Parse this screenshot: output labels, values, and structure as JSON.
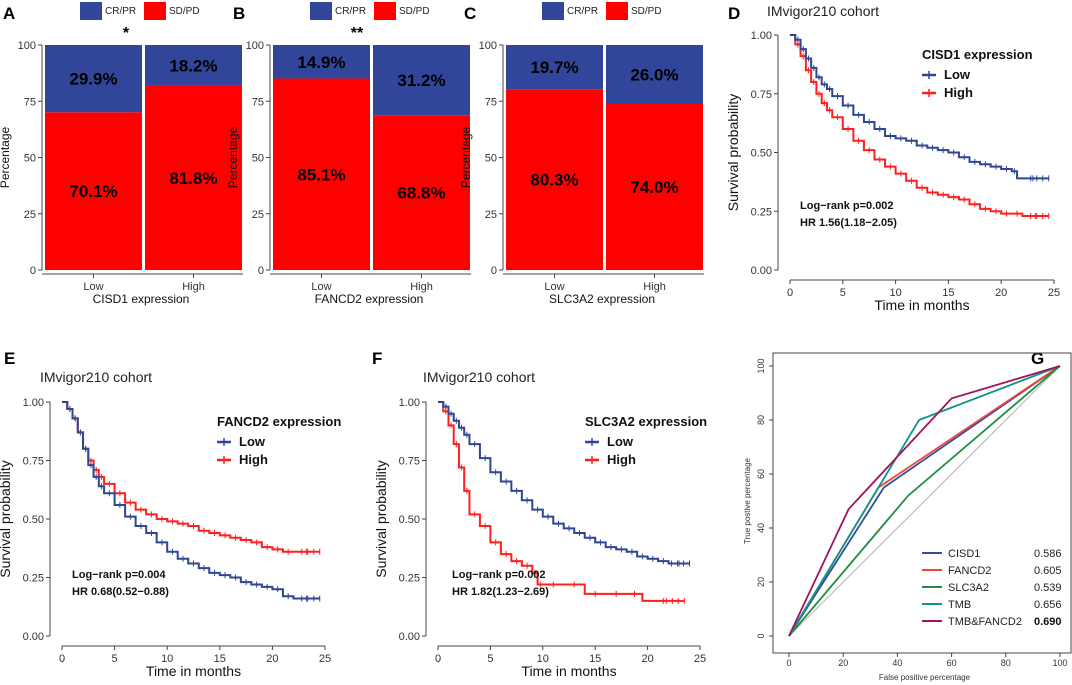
{
  "colors": {
    "cr_pr": "#31469a",
    "sd_pd": "#ff0000",
    "km_low": "#2f4694",
    "km_high": "#ff1f1f",
    "roc": [
      "#2f4f9a",
      "#ef4438",
      "#1f8f3f",
      "#10948c",
      "#a4125a"
    ],
    "diag": "#bdbdbd"
  },
  "chart_data": [
    {
      "panel": "A",
      "type": "bar",
      "stacked": true,
      "legend": [
        "CR/PR",
        "SD/PD"
      ],
      "categories": [
        "Low",
        "High"
      ],
      "series": [
        {
          "name": "CR/PR",
          "values": [
            29.9,
            18.2
          ],
          "labels": [
            "29.9%",
            "18.2%"
          ]
        },
        {
          "name": "SD/PD",
          "values": [
            70.1,
            81.8
          ],
          "labels": [
            "70.1%",
            "81.8%"
          ]
        }
      ],
      "xlabel": "CISD1 expression",
      "ylabel": "Percentage",
      "ylim": [
        0,
        100
      ],
      "yticks": [
        "0",
        "25",
        "50",
        "75",
        "100"
      ],
      "significance": "*"
    },
    {
      "panel": "B",
      "type": "bar",
      "stacked": true,
      "legend": [
        "CR/PR",
        "SD/PD"
      ],
      "categories": [
        "Low",
        "High"
      ],
      "series": [
        {
          "name": "CR/PR",
          "values": [
            14.9,
            31.2
          ],
          "labels": [
            "14.9%",
            "31.2%"
          ]
        },
        {
          "name": "SD/PD",
          "values": [
            85.1,
            68.8
          ],
          "labels": [
            "85.1%",
            "68.8%"
          ]
        }
      ],
      "xlabel": "FANCD2 expression",
      "ylabel": "Percentage",
      "ylim": [
        0,
        100
      ],
      "yticks": [
        "0",
        "25",
        "50",
        "75",
        "100"
      ],
      "significance": "**"
    },
    {
      "panel": "C",
      "type": "bar",
      "stacked": true,
      "legend": [
        "CR/PR",
        "SD/PD"
      ],
      "categories": [
        "Low",
        "High"
      ],
      "series": [
        {
          "name": "CR/PR",
          "values": [
            19.7,
            26.0
          ],
          "labels": [
            "19.7%",
            "26.0%"
          ]
        },
        {
          "name": "SD/PD",
          "values": [
            80.3,
            74.0
          ],
          "labels": [
            "80.3%",
            "74.0%"
          ]
        }
      ],
      "xlabel": "SLC3A2 expression",
      "ylabel": "Percentage",
      "ylim": [
        0,
        100
      ],
      "yticks": [
        "0",
        "25",
        "50",
        "75",
        "100"
      ],
      "significance": ""
    },
    {
      "panel": "D",
      "type": "line",
      "title": "IMvigor210 cohort",
      "legend_title": "CISD1 expression",
      "xlabel": "Time in months",
      "ylabel": "Survival probability",
      "xlim": [
        0,
        25
      ],
      "ylim": [
        0,
        1
      ],
      "xticks": [
        "0",
        "5",
        "10",
        "15",
        "20",
        "25"
      ],
      "yticks": [
        "0.00",
        "0.25",
        "0.50",
        "0.75",
        "1.00"
      ],
      "stat_line1": "Log−rank p=0.002",
      "stat_line2": "HR 1.56(1.18−2.05)",
      "series": [
        {
          "name": "Low",
          "x": [
            0,
            0.5,
            1,
            1.5,
            2,
            2.5,
            3,
            3.5,
            4,
            5,
            6,
            7,
            8,
            9,
            10,
            11,
            12,
            13,
            14,
            15,
            16,
            17,
            18,
            19,
            20,
            21,
            21.5,
            24.5
          ],
          "y": [
            1.0,
            0.98,
            0.94,
            0.9,
            0.86,
            0.82,
            0.79,
            0.77,
            0.74,
            0.7,
            0.66,
            0.63,
            0.6,
            0.57,
            0.56,
            0.55,
            0.53,
            0.52,
            0.51,
            0.5,
            0.48,
            0.46,
            0.45,
            0.44,
            0.43,
            0.42,
            0.39,
            0.39
          ]
        },
        {
          "name": "High",
          "x": [
            0,
            0.5,
            1,
            1.5,
            2,
            2.5,
            3,
            3.5,
            4,
            5,
            6,
            7,
            8,
            9,
            10,
            11,
            12,
            13,
            14,
            15,
            16,
            17,
            18,
            19,
            20,
            21,
            22,
            24.5
          ],
          "y": [
            1.0,
            0.96,
            0.91,
            0.85,
            0.8,
            0.75,
            0.71,
            0.68,
            0.65,
            0.6,
            0.55,
            0.51,
            0.47,
            0.44,
            0.41,
            0.38,
            0.35,
            0.33,
            0.32,
            0.31,
            0.3,
            0.28,
            0.26,
            0.25,
            0.24,
            0.24,
            0.23,
            0.23
          ]
        }
      ]
    },
    {
      "panel": "E",
      "type": "line",
      "title": "IMvigor210 cohort",
      "legend_title": "FANCD2 expression",
      "xlabel": "Time in months",
      "ylabel": "Survival probability",
      "xlim": [
        0,
        25
      ],
      "ylim": [
        0,
        1
      ],
      "xticks": [
        "0",
        "5",
        "10",
        "15",
        "20",
        "25"
      ],
      "yticks": [
        "0.00",
        "0.25",
        "0.50",
        "0.75",
        "1.00"
      ],
      "stat_line1": "Log−rank p=0.004",
      "stat_line2": "HR 0.68(0.52−0.88)",
      "series": [
        {
          "name": "Low",
          "x": [
            0,
            0.5,
            1,
            1.5,
            2,
            2.5,
            3,
            3.5,
            4,
            5,
            6,
            7,
            8,
            9,
            10,
            11,
            12,
            13,
            14,
            15,
            16,
            17,
            18,
            19,
            20,
            21,
            22,
            24.5
          ],
          "y": [
            1.0,
            0.97,
            0.93,
            0.87,
            0.8,
            0.73,
            0.68,
            0.64,
            0.61,
            0.56,
            0.51,
            0.47,
            0.44,
            0.4,
            0.36,
            0.33,
            0.31,
            0.29,
            0.27,
            0.26,
            0.25,
            0.23,
            0.22,
            0.21,
            0.2,
            0.17,
            0.16,
            0.16
          ]
        },
        {
          "name": "High",
          "x": [
            0,
            0.5,
            1,
            1.5,
            2,
            2.5,
            3,
            3.5,
            4,
            5,
            6,
            7,
            8,
            9,
            10,
            11,
            12,
            13,
            14,
            15,
            16,
            17,
            18,
            19,
            20,
            21,
            22,
            24.5
          ],
          "y": [
            1.0,
            0.97,
            0.93,
            0.87,
            0.8,
            0.75,
            0.71,
            0.68,
            0.65,
            0.61,
            0.57,
            0.54,
            0.52,
            0.5,
            0.49,
            0.48,
            0.47,
            0.45,
            0.44,
            0.43,
            0.42,
            0.41,
            0.4,
            0.38,
            0.37,
            0.36,
            0.36,
            0.36
          ]
        }
      ]
    },
    {
      "panel": "F",
      "type": "line",
      "title": "IMvigor210 cohort",
      "legend_title": "SLC3A2 expression",
      "xlabel": "Time in months",
      "ylabel": "Survival probability",
      "xlim": [
        0,
        25
      ],
      "ylim": [
        0,
        1
      ],
      "xticks": [
        "0",
        "5",
        "10",
        "15",
        "20",
        "25"
      ],
      "yticks": [
        "0.00",
        "0.25",
        "0.50",
        "0.75",
        "1.00"
      ],
      "stat_line1": "Log−rank p=0.002",
      "stat_line2": "HR 1.82(1.23−2.69)",
      "series": [
        {
          "name": "Low",
          "x": [
            0,
            0.5,
            1,
            1.5,
            2,
            2.5,
            3,
            4,
            5,
            6,
            7,
            8,
            9,
            10,
            11,
            12,
            13,
            14,
            15,
            16,
            17,
            18,
            19,
            20,
            21,
            22,
            24
          ],
          "y": [
            1.0,
            0.98,
            0.95,
            0.92,
            0.89,
            0.86,
            0.82,
            0.76,
            0.7,
            0.66,
            0.62,
            0.58,
            0.54,
            0.51,
            0.48,
            0.46,
            0.44,
            0.42,
            0.4,
            0.38,
            0.37,
            0.36,
            0.34,
            0.33,
            0.32,
            0.31,
            0.31
          ]
        },
        {
          "name": "High",
          "x": [
            0,
            0.5,
            1,
            1.5,
            2,
            2.5,
            3,
            4,
            5,
            6,
            7,
            8,
            9,
            9.5,
            10,
            12,
            14,
            16,
            18,
            19.5,
            23.5
          ],
          "y": [
            1.0,
            0.96,
            0.9,
            0.82,
            0.72,
            0.62,
            0.52,
            0.47,
            0.4,
            0.35,
            0.32,
            0.3,
            0.27,
            0.22,
            0.22,
            0.22,
            0.18,
            0.18,
            0.18,
            0.15,
            0.15
          ]
        }
      ]
    },
    {
      "panel": "G",
      "type": "line",
      "xlabel": "False positive percentage",
      "ylabel": "True postive percentage",
      "xlim": [
        0,
        100
      ],
      "ylim": [
        0,
        100
      ],
      "xticks": [
        "0",
        "20",
        "40",
        "60",
        "80",
        "100"
      ],
      "yticks": [
        "0",
        "20",
        "40",
        "60",
        "80",
        "100"
      ],
      "series": [
        {
          "name": "CISD1",
          "auc": "0.586",
          "x": [
            0,
            35,
            100
          ],
          "y": [
            0,
            55,
            100
          ]
        },
        {
          "name": "FANCD2",
          "auc": "0.605",
          "x": [
            0,
            33,
            100
          ],
          "y": [
            0,
            55,
            100
          ]
        },
        {
          "name": "SLC3A2",
          "auc": "0.539",
          "x": [
            0,
            44,
            100
          ],
          "y": [
            0,
            52,
            100
          ]
        },
        {
          "name": "TMB",
          "auc": "0.656",
          "x": [
            0,
            48,
            100
          ],
          "y": [
            0,
            80,
            100
          ]
        },
        {
          "name": "TMB&FANCD2",
          "auc": "0.690",
          "x": [
            0,
            22,
            60,
            100
          ],
          "y": [
            0,
            47,
            88,
            100
          ]
        }
      ]
    }
  ]
}
